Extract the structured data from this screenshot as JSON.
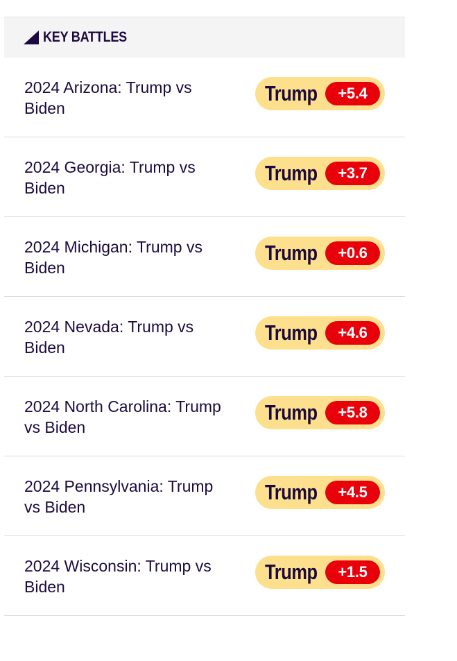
{
  "header": {
    "title": "KEY BATTLES",
    "icon": "triangle-icon"
  },
  "colors": {
    "text": "#1c0a3e",
    "header_bg": "#f4f4f5",
    "pill_bg": "#fde08d",
    "spread_bg": "#e8000b"
  },
  "rows": [
    {
      "label": "2024 Arizona: Trump vs Biden",
      "leader": "Trump",
      "spread": "+5.4"
    },
    {
      "label": "2024 Georgia: Trump vs Biden",
      "leader": "Trump",
      "spread": "+3.7"
    },
    {
      "label": "2024 Michigan: Trump vs Biden",
      "leader": "Trump",
      "spread": "+0.6"
    },
    {
      "label": "2024 Nevada: Trump vs Biden",
      "leader": "Trump",
      "spread": "+4.6"
    },
    {
      "label": "2024 North Carolina: Trump vs Biden",
      "leader": "Trump",
      "spread": "+5.8"
    },
    {
      "label": "2024 Pennsylvania: Trump vs Biden",
      "leader": "Trump",
      "spread": "+4.5"
    },
    {
      "label": "2024 Wisconsin: Trump vs Biden",
      "leader": "Trump",
      "spread": "+1.5"
    }
  ]
}
